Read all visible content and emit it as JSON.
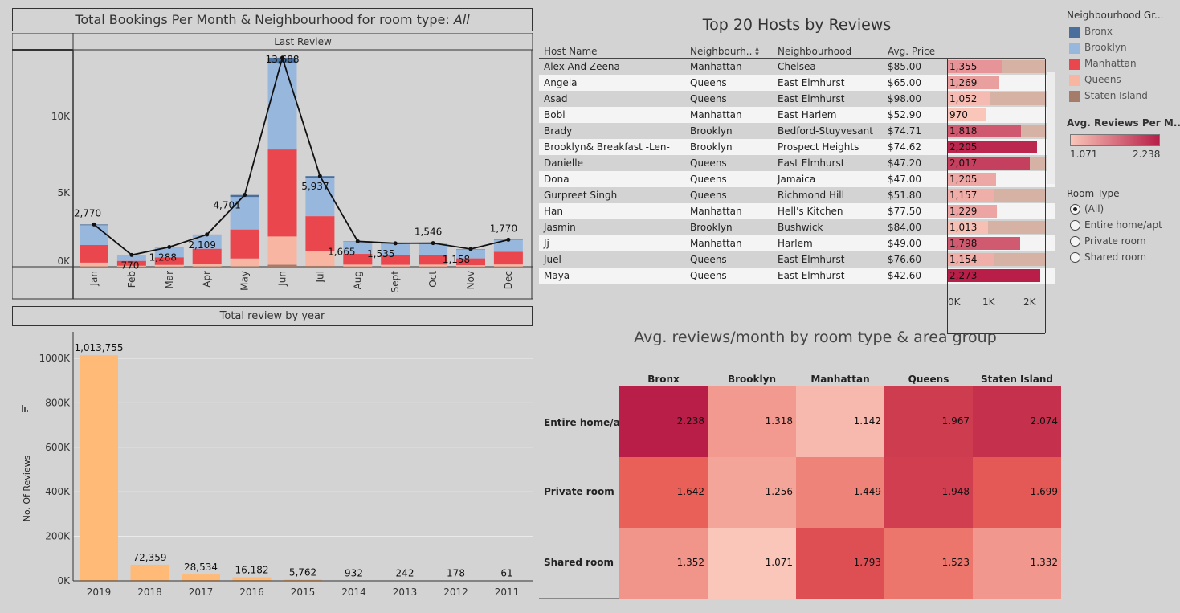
{
  "booking_panel": {
    "title_prefix": "Total Bookings Per Month & Neighbourhood for room type: ",
    "title_filter": "All",
    "subheader": "Last Review",
    "y_ticks": [
      "10K",
      "5K",
      "0K"
    ]
  },
  "reviews_year_panel": {
    "title": "Total review by year",
    "ylabel": "No. Of Reviews",
    "y_ticks": [
      "1000K",
      "800K",
      "600K",
      "400K",
      "200K",
      "0K"
    ]
  },
  "hosts_table": {
    "title": "Top 20 Hosts by Reviews",
    "columns": [
      "Host Name",
      "Neighbourh..",
      "Neighbourhood",
      "Avg. Price"
    ],
    "sort_icon": "sort-icon",
    "axis_ticks": [
      "0K",
      "1K",
      "2K"
    ],
    "rows": [
      {
        "host": "Alex And Zeena",
        "group": "Manhattan",
        "hood": "Chelsea",
        "price": "$85.00",
        "reviews": 1355,
        "label": "1,355"
      },
      {
        "host": "Angela",
        "group": "Queens",
        "hood": "East Elmhurst",
        "price": "$65.00",
        "reviews": 1269,
        "label": "1,269"
      },
      {
        "host": "Asad",
        "group": "Queens",
        "hood": "East Elmhurst",
        "price": "$98.00",
        "reviews": 1052,
        "label": "1,052"
      },
      {
        "host": "Bobi",
        "group": "Manhattan",
        "hood": "East Harlem",
        "price": "$52.90",
        "reviews": 970,
        "label": "970"
      },
      {
        "host": "Brady",
        "group": "Brooklyn",
        "hood": "Bedford-Stuyvesant",
        "price": "$74.71",
        "reviews": 1818,
        "label": "1,818"
      },
      {
        "host": "Brooklyn&  Breakfast  -Len-",
        "group": "Brooklyn",
        "hood": "Prospect Heights",
        "price": "$74.62",
        "reviews": 2205,
        "label": "2,205"
      },
      {
        "host": "Danielle",
        "group": "Queens",
        "hood": "East Elmhurst",
        "price": "$47.20",
        "reviews": 2017,
        "label": "2,017"
      },
      {
        "host": "Dona",
        "group": "Queens",
        "hood": "Jamaica",
        "price": "$47.00",
        "reviews": 1205,
        "label": "1,205"
      },
      {
        "host": "Gurpreet  Singh",
        "group": "Queens",
        "hood": "Richmond Hill",
        "price": "$51.80",
        "reviews": 1157,
        "label": "1,157"
      },
      {
        "host": "Han",
        "group": "Manhattan",
        "hood": "Hell's Kitchen",
        "price": "$77.50",
        "reviews": 1229,
        "label": "1,229"
      },
      {
        "host": "Jasmin",
        "group": "Brooklyn",
        "hood": "Bushwick",
        "price": "$84.00",
        "reviews": 1013,
        "label": "1,013"
      },
      {
        "host": "Jj",
        "group": "Manhattan",
        "hood": "Harlem",
        "price": "$49.00",
        "reviews": 1798,
        "label": "1,798"
      },
      {
        "host": "Juel",
        "group": "Queens",
        "hood": "East Elmhurst",
        "price": "$76.60",
        "reviews": 1154,
        "label": "1,154"
      },
      {
        "host": "Maya",
        "group": "Queens",
        "hood": "East Elmhurst",
        "price": "$42.60",
        "reviews": 2273,
        "label": "2,273"
      }
    ]
  },
  "legend_group": {
    "title": "Neighbourhood Gr...",
    "items": [
      {
        "label": "Bronx",
        "color": "#4a6f9c"
      },
      {
        "label": "Brooklyn",
        "color": "#98b7dd"
      },
      {
        "label": "Manhattan",
        "color": "#e9464d"
      },
      {
        "label": "Queens",
        "color": "#f8b5a2"
      },
      {
        "label": "Staten Island",
        "color": "#a57b6a"
      }
    ]
  },
  "legend_color": {
    "title": "Avg. Reviews Per M...",
    "min_label": "1.071",
    "max_label": "2.238",
    "min_color": "#f9c6b9",
    "max_color": "#b81e48"
  },
  "room_type_filter": {
    "title": "Room Type",
    "options": [
      "(All)",
      "Entire home/apt",
      "Private room",
      "Shared room"
    ],
    "selected": "(All)"
  },
  "heatmap": {
    "title": "Avg. reviews/month by room type & area group",
    "columns": [
      "Bronx",
      "Brooklyn",
      "Manhattan",
      "Queens",
      "Staten Island"
    ],
    "rows": [
      "Entire home/apt",
      "Private room",
      "Shared room"
    ],
    "labels": [
      [
        "2.238",
        "1.318",
        "1.142",
        "1.967",
        "2.074"
      ],
      [
        "1.642",
        "1.256",
        "1.449",
        "1.948",
        "1.699"
      ],
      [
        "1.352",
        "1.071",
        "1.793",
        "1.523",
        "1.332"
      ]
    ],
    "values": [
      [
        2.238,
        1.318,
        1.142,
        1.967,
        2.074
      ],
      [
        1.642,
        1.256,
        1.449,
        1.948,
        1.699
      ],
      [
        1.352,
        1.071,
        1.793,
        1.523,
        1.332
      ]
    ]
  },
  "chart_data": [
    {
      "type": "bar",
      "stacked": true,
      "title": "Total Bookings Per Month & Neighbourhood for room type: All",
      "xlabel": "Last Review",
      "categories": [
        "Jan",
        "Feb",
        "Mar",
        "Apr",
        "May",
        "Jun",
        "Jul",
        "Aug",
        "Sept",
        "Oct",
        "Nov",
        "Dec"
      ],
      "ylim": [
        0,
        13688
      ],
      "series": [
        {
          "name": "Staten Island",
          "color": "#a57b6a",
          "values": [
            20,
            5,
            10,
            15,
            40,
            130,
            60,
            10,
            8,
            10,
            8,
            10
          ]
        },
        {
          "name": "Queens",
          "color": "#f8b5a2",
          "values": [
            250,
            60,
            110,
            180,
            500,
            1850,
            950,
            130,
            120,
            130,
            90,
            140
          ]
        },
        {
          "name": "Manhattan",
          "color": "#e9464d",
          "values": [
            1150,
            320,
            500,
            980,
            1900,
            5700,
            2300,
            700,
            620,
            650,
            450,
            830
          ]
        },
        {
          "name": "Brooklyn",
          "color": "#98b7dd",
          "values": [
            1300,
            370,
            640,
            880,
            2130,
            5650,
            2520,
            800,
            760,
            730,
            590,
            760
          ]
        },
        {
          "name": "Bronx",
          "color": "#4a6f9c",
          "values": [
            50,
            15,
            28,
            54,
            131,
            358,
            107,
            25,
            27,
            26,
            20,
            30
          ]
        }
      ],
      "line": {
        "name": "Total",
        "values": [
          2770,
          770,
          1288,
          2109,
          4701,
          13688,
          5937,
          1665,
          1535,
          1546,
          1158,
          1770
        ],
        "labels": [
          "2,770",
          "770",
          "1,288",
          "2,109",
          "4,701",
          "13,688",
          "5,937",
          "1,665",
          "1,535",
          "1,546",
          "1,158",
          "1,770"
        ]
      },
      "y_ticks": [
        "10K",
        "5K",
        "0K"
      ]
    },
    {
      "type": "bar",
      "title": "Total review by year",
      "ylabel": "No. Of Reviews",
      "categories": [
        "2019",
        "2018",
        "2017",
        "2016",
        "2015",
        "2014",
        "2013",
        "2012",
        "2011"
      ],
      "values": [
        1013755,
        72359,
        28534,
        16182,
        5762,
        932,
        242,
        178,
        61
      ],
      "labels": [
        "1,013,755",
        "72,359",
        "28,534",
        "16,182",
        "5,762",
        "932",
        "242",
        "178",
        "61"
      ],
      "ylim": [
        0,
        1000000
      ],
      "y_ticks": [
        "1000K",
        "800K",
        "600K",
        "400K",
        "200K",
        "0K"
      ],
      "color": "#ffba78"
    },
    {
      "type": "heatmap",
      "title": "Avg. reviews/month by room type & area group",
      "columns": [
        "Bronx",
        "Brooklyn",
        "Manhattan",
        "Queens",
        "Staten Island"
      ],
      "rows": [
        "Entire home/apt",
        "Private room",
        "Shared room"
      ],
      "values": [
        [
          2.238,
          1.318,
          1.142,
          1.967,
          2.074
        ],
        [
          1.642,
          1.256,
          1.449,
          1.948,
          1.699
        ],
        [
          1.352,
          1.071,
          1.793,
          1.523,
          1.332
        ]
      ]
    }
  ]
}
